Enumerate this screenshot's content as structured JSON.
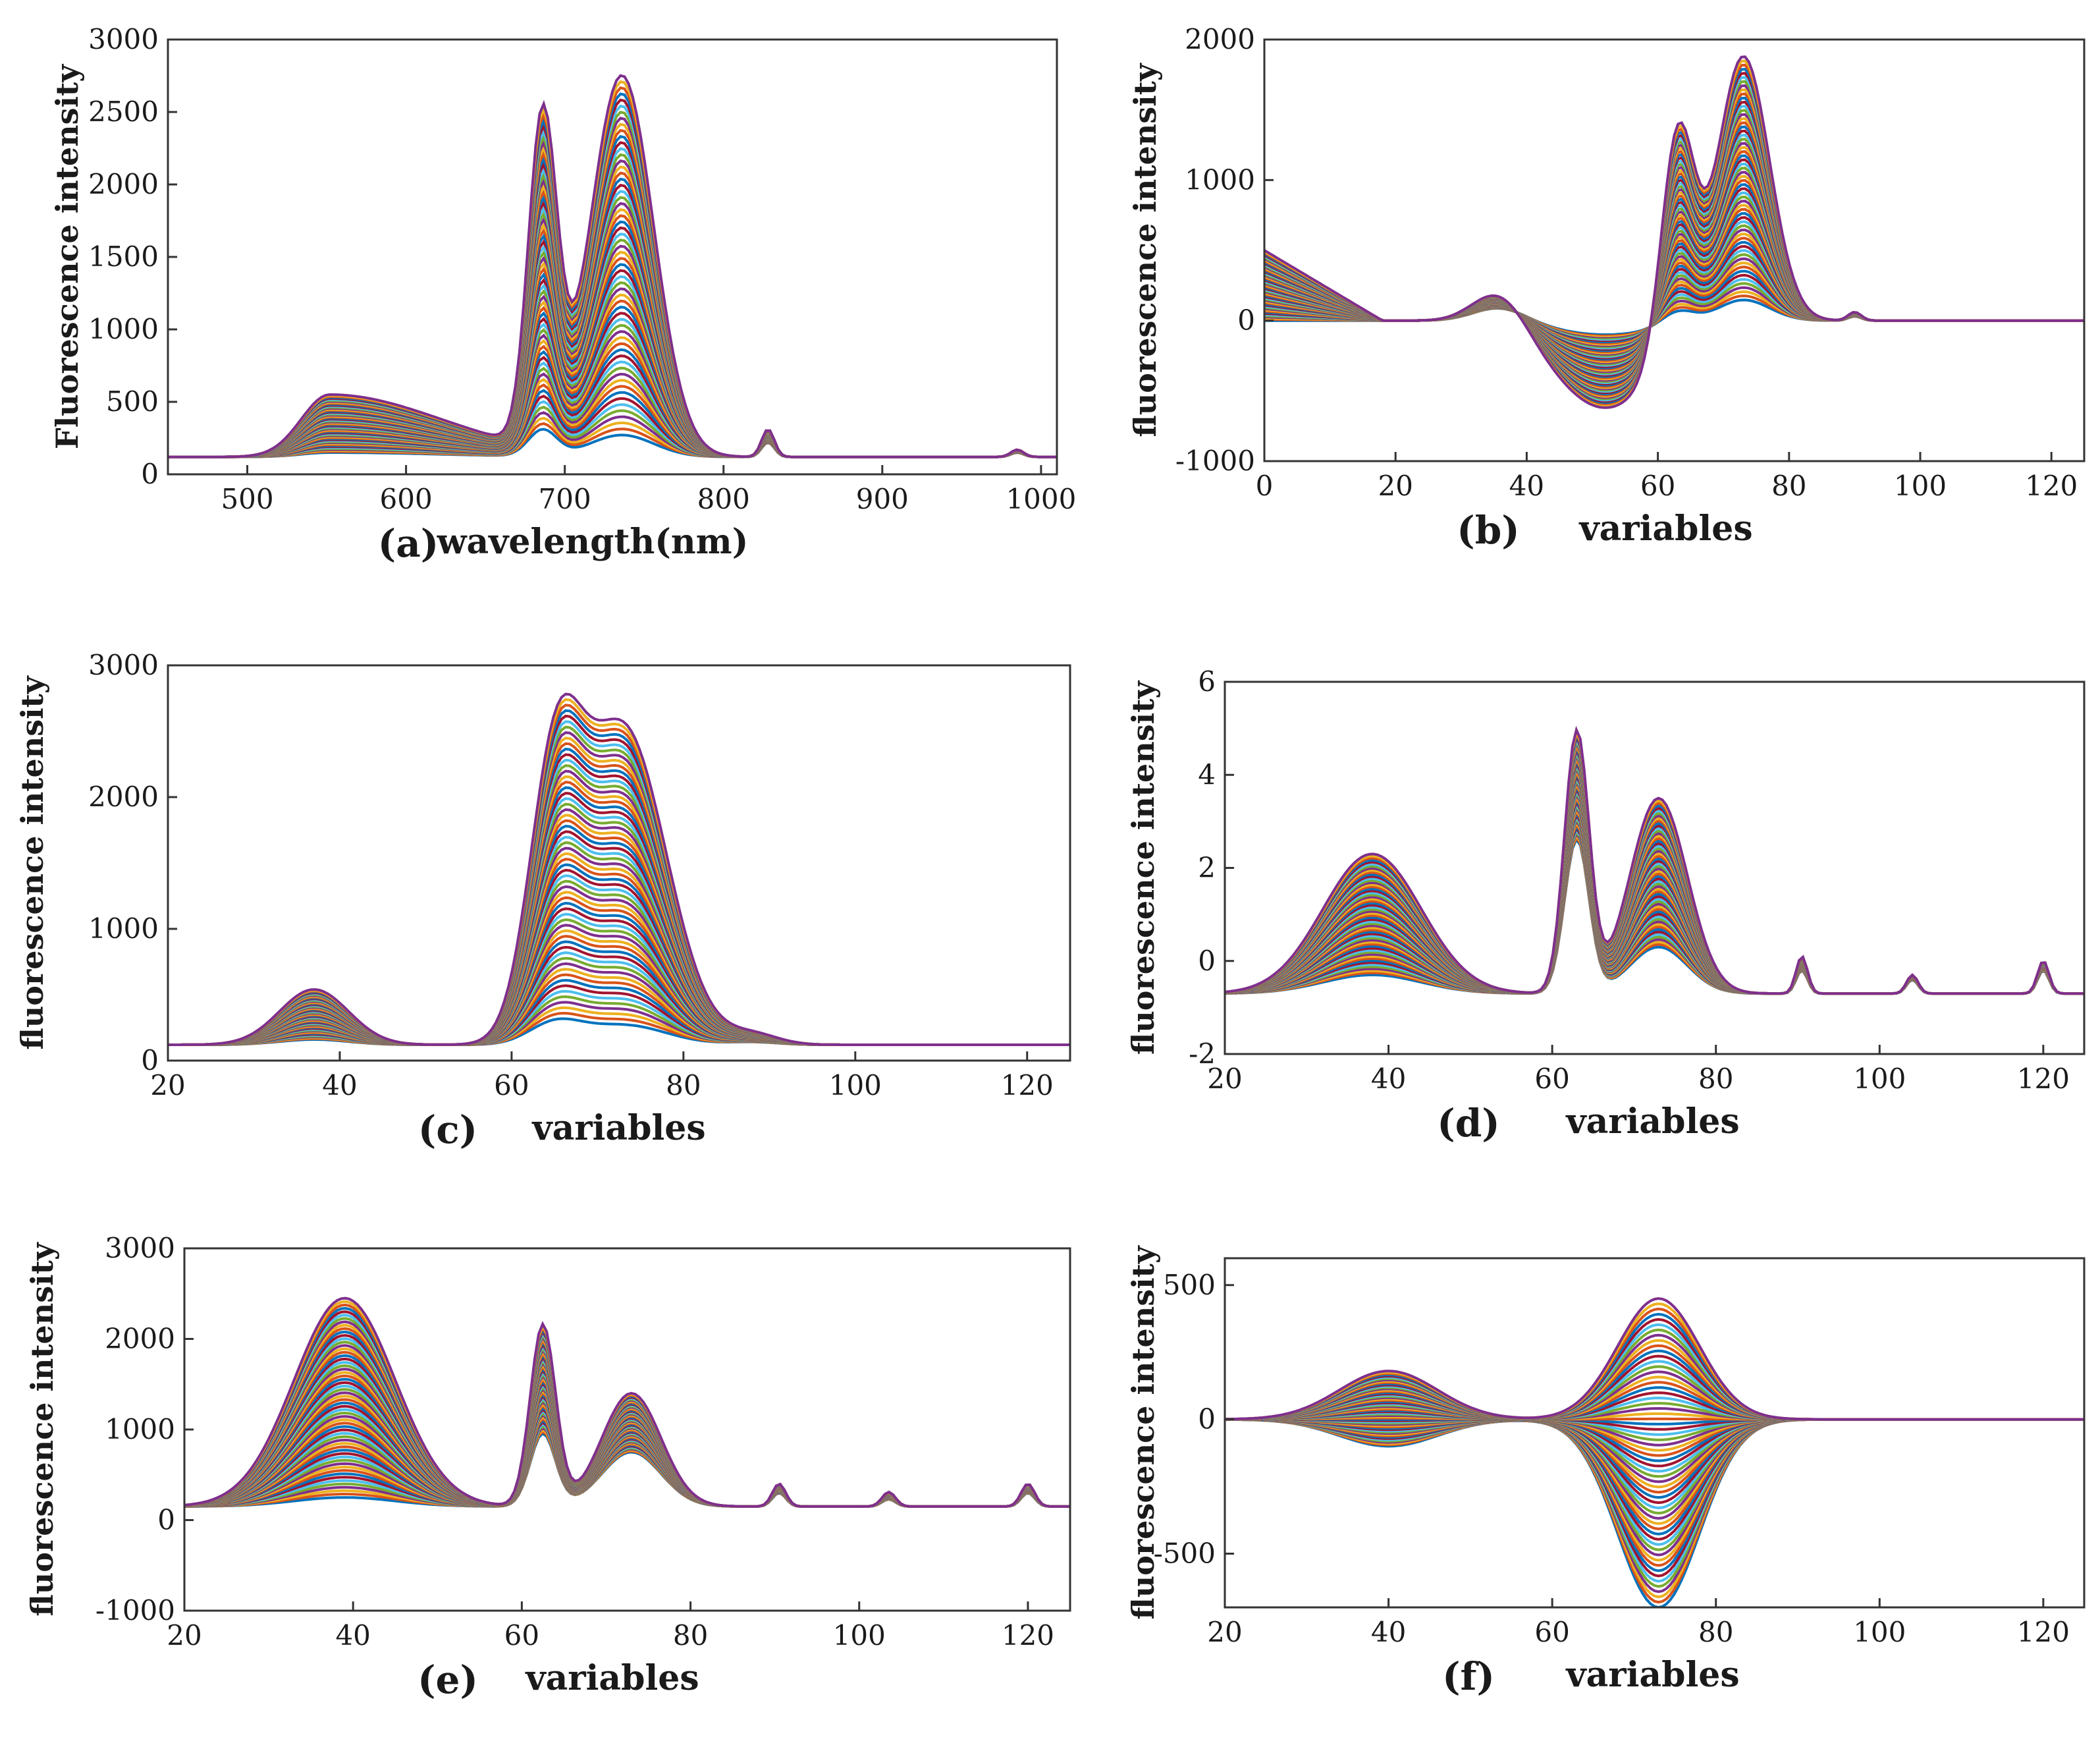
{
  "palette": [
    "#0072BD",
    "#D95319",
    "#EDB120",
    "#7E2F8E",
    "#77AC30",
    "#4DBEEE",
    "#A2142F"
  ],
  "chart_data": [
    {
      "id": "a",
      "type": "line",
      "panel_label": "(a)",
      "xlabel": "wavelength(nm)",
      "ylabel": "Fluorescence intensity",
      "xlim": [
        450,
        1010
      ],
      "ylim": [
        0,
        3000
      ],
      "xticks": [
        500,
        600,
        700,
        800,
        900,
        1000
      ],
      "yticks": [
        0,
        500,
        1000,
        1500,
        2000,
        2500,
        3000
      ],
      "n_series": 60,
      "baseline": 120,
      "peaks": [
        {
          "x": 552,
          "w": 18,
          "amp": [
            30,
            430
          ],
          "tail": 70
        },
        {
          "x": 686,
          "w": 9,
          "amp": [
            180,
            2250
          ]
        },
        {
          "x": 736,
          "w": 20,
          "amp": [
            150,
            2620
          ]
        },
        {
          "x": 828,
          "w": 4,
          "amp": [
            100,
            190
          ]
        },
        {
          "x": 985,
          "w": 4,
          "amp": [
            30,
            50
          ]
        }
      ]
    },
    {
      "id": "b",
      "type": "line",
      "panel_label": "(b)",
      "xlabel": "variables",
      "ylabel": "fluorescence intensity",
      "xlim": [
        0,
        125
      ],
      "ylim": [
        -1000,
        2000
      ],
      "xticks": [
        0,
        20,
        40,
        60,
        80,
        100,
        120
      ],
      "yticks": [
        -1000,
        0,
        1000,
        2000
      ],
      "n_series": 60,
      "baseline": 0,
      "start": [
        0,
        500
      ],
      "trough_before_peak": [
        -100,
        -620
      ],
      "peaks": [
        {
          "x": 36,
          "w": 4,
          "amp": [
            100,
            250
          ]
        },
        {
          "x": 63,
          "w": 2.5,
          "amp": [
            100,
            1550
          ]
        },
        {
          "x": 73,
          "w": 4,
          "amp": [
            150,
            1900
          ]
        },
        {
          "x": 90,
          "w": 1,
          "amp": [
            30,
            60
          ]
        }
      ]
    },
    {
      "id": "c",
      "type": "line",
      "panel_label": "(c)",
      "xlabel": "variables",
      "ylabel": "fluorescence intensity",
      "xlim": [
        20,
        125
      ],
      "ylim": [
        0,
        3000
      ],
      "xticks": [
        20,
        40,
        60,
        80,
        100,
        120
      ],
      "yticks": [
        0,
        1000,
        2000,
        3000
      ],
      "n_series": 60,
      "baseline": 120,
      "peaks": [
        {
          "x": 37,
          "w": 4,
          "amp": [
            40,
            420
          ]
        },
        {
          "x": 65,
          "w": 3,
          "amp": [
            150,
            1850
          ]
        },
        {
          "x": 73,
          "w": 5,
          "amp": [
            150,
            2400
          ]
        },
        {
          "x": 88,
          "w": 3,
          "amp": [
            20,
            80
          ]
        }
      ]
    },
    {
      "id": "d",
      "type": "line",
      "panel_label": "(d)",
      "xlabel": "variables",
      "ylabel": "fluorescence intensity",
      "xlim": [
        20,
        125
      ],
      "ylim": [
        -2,
        6
      ],
      "xticks": [
        20,
        40,
        60,
        80,
        100,
        120
      ],
      "yticks": [
        -2,
        0,
        2,
        4,
        6
      ],
      "n_series": 60,
      "baseline": -0.7,
      "peaks": [
        {
          "x": 38,
          "w": 6,
          "amp": [
            0.4,
            3.0
          ]
        },
        {
          "x": 63,
          "w": 1.5,
          "amp": [
            3.3,
            5.6
          ]
        },
        {
          "x": 73,
          "w": 3.5,
          "amp": [
            1.0,
            4.2
          ]
        },
        {
          "x": 90.5,
          "w": 0.7,
          "amp": [
            0.5,
            0.8
          ]
        },
        {
          "x": 104,
          "w": 0.7,
          "amp": [
            0.3,
            0.4
          ]
        },
        {
          "x": 120,
          "w": 0.7,
          "amp": [
            0.5,
            0.7
          ]
        }
      ]
    },
    {
      "id": "e",
      "type": "line",
      "panel_label": "(e)",
      "xlabel": "variables",
      "ylabel": "fluorescence intensity",
      "xlim": [
        20,
        125
      ],
      "ylim": [
        -1000,
        3000
      ],
      "xticks": [
        20,
        40,
        60,
        80,
        100,
        120
      ],
      "yticks": [
        -1000,
        0,
        1000,
        2000,
        3000
      ],
      "n_series": 60,
      "baseline": 150,
      "peaks": [
        {
          "x": 39,
          "w": 6,
          "amp": [
            100,
            2300
          ]
        },
        {
          "x": 62.5,
          "w": 1.5,
          "amp": [
            800,
            2000
          ]
        },
        {
          "x": 73,
          "w": 3.5,
          "amp": [
            600,
            1250
          ]
        },
        {
          "x": 90.5,
          "w": 0.8,
          "amp": [
            150,
            250
          ]
        },
        {
          "x": 103.5,
          "w": 0.8,
          "amp": [
            80,
            160
          ]
        },
        {
          "x": 120,
          "w": 0.8,
          "amp": [
            150,
            250
          ]
        }
      ]
    },
    {
      "id": "f",
      "type": "line",
      "panel_label": "(f)",
      "xlabel": "variables",
      "ylabel": "fluorescence intensity",
      "xlim": [
        20,
        125
      ],
      "ylim": [
        -700,
        600
      ],
      "xticks": [
        20,
        40,
        60,
        80,
        100,
        120
      ],
      "yticks": [
        -500,
        0,
        500
      ],
      "n_series": 60,
      "baseline": 0,
      "peaks": [
        {
          "x": 40,
          "w": 6,
          "amp": [
            -100,
            180
          ]
        },
        {
          "x": 73,
          "w": 5,
          "amp": [
            -700,
            450
          ]
        }
      ]
    }
  ]
}
